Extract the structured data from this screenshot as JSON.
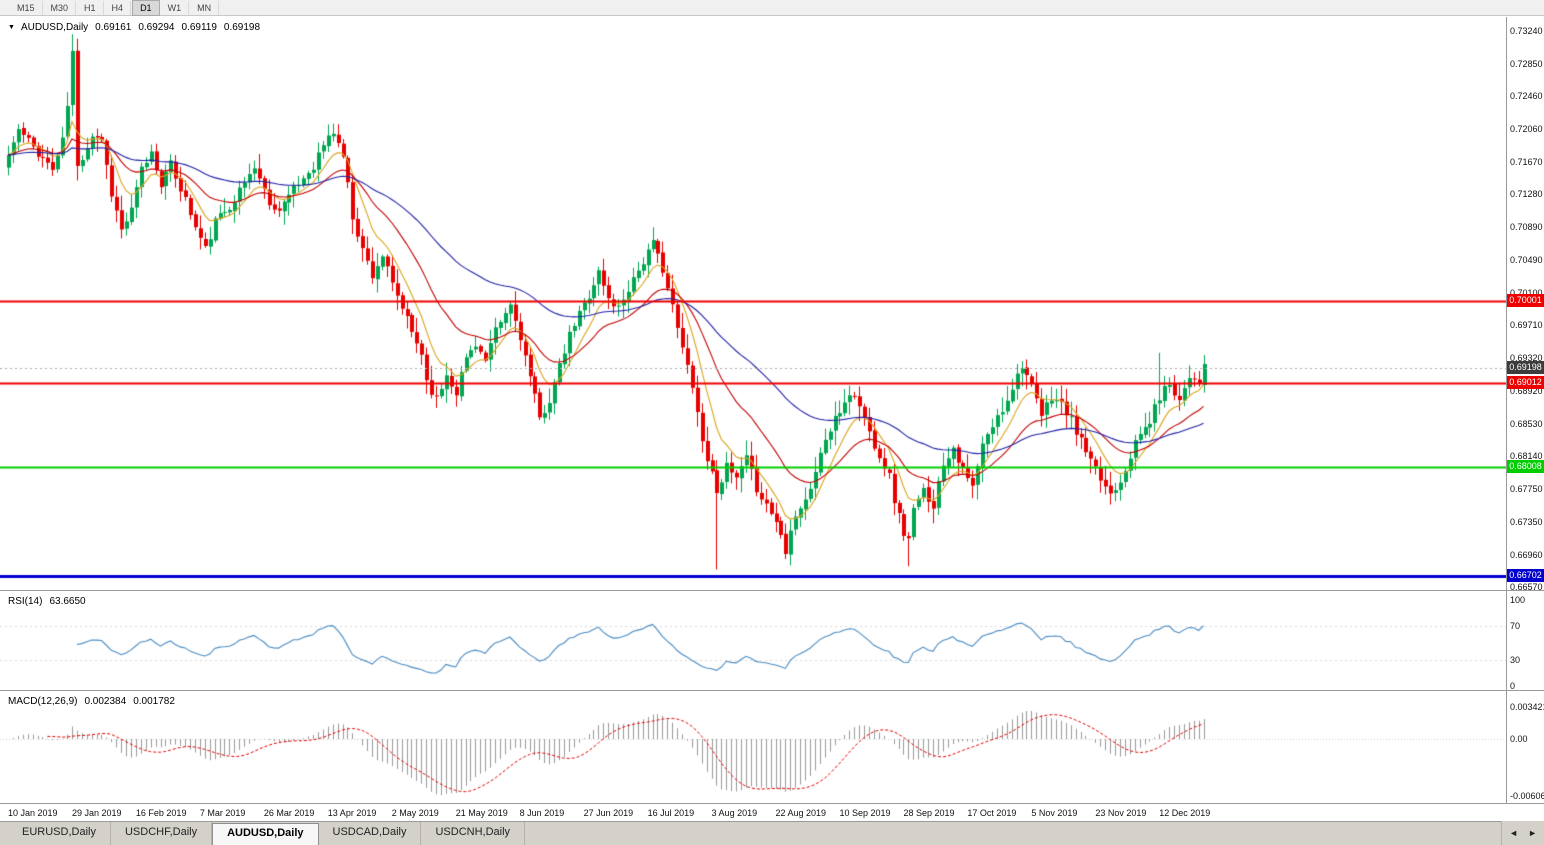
{
  "toolbar": {
    "timeframes": [
      "M15",
      "M30",
      "H1",
      "H4",
      "D1",
      "W1",
      "MN"
    ],
    "active": "D1"
  },
  "chart": {
    "title": "AUDUSD,Daily",
    "ohlc": {
      "open": "0.69161",
      "high": "0.69294",
      "low": "0.69119",
      "close": "0.69198"
    },
    "price_axis": [
      "0.73240",
      "0.72850",
      "0.72460",
      "0.72060",
      "0.71670",
      "0.71280",
      "0.70890",
      "0.70490",
      "0.70100",
      "0.69710",
      "0.69320",
      "0.68920",
      "0.68530",
      "0.68140",
      "0.67750",
      "0.67350",
      "0.66960",
      "0.66570"
    ],
    "hlines": [
      {
        "price": 0.70001,
        "label": "0.70001",
        "color": "#ee0000",
        "width": 2
      },
      {
        "price": 0.69012,
        "label": "0.69012",
        "color": "#ee0000",
        "width": 2
      },
      {
        "price": 0.68008,
        "label": "0.68008",
        "color": "#00ce00",
        "width": 2
      },
      {
        "price": 0.66702,
        "label": "0.66702",
        "color": "#0000cf",
        "width": 3
      }
    ],
    "current_price": {
      "value": 0.69198,
      "label": "0.69198",
      "badge_color": "#3c3c3c"
    },
    "dates": [
      "10 Jan 2019",
      "29 Jan 2019",
      "16 Feb 2019",
      "7 Mar 2019",
      "26 Mar 2019",
      "13 Apr 2019",
      "2 May 2019",
      "21 May 2019",
      "8 Jun 2019",
      "27 Jun 2019",
      "16 Jul 2019",
      "3 Aug 2019",
      "22 Aug 2019",
      "10 Sep 2019",
      "28 Sep 2019",
      "17 Oct 2019",
      "5 Nov 2019",
      "23 Nov 2019",
      "12 Dec 2019"
    ],
    "colors": {
      "bull": "#00a651",
      "bear": "#e60000"
    }
  },
  "rsi": {
    "label": "RSI(14)",
    "value": "63.6650",
    "axis": [
      "100",
      "70",
      "30",
      "0"
    ],
    "line_color": "#4a8bc2",
    "period": 14
  },
  "macd": {
    "label": "MACD(12,26,9)",
    "value1": "0.002384",
    "value2": "0.001782",
    "axis": [
      "0.003421",
      "0.00",
      "-0.006069"
    ],
    "hist_color": "#9a9a9a",
    "signal_color": "#e00000",
    "params": [
      12,
      26,
      9
    ]
  },
  "tabs": {
    "items": [
      "EURUSD,Daily",
      "USDCHF,Daily",
      "AUDUSD,Daily",
      "USDCAD,Daily",
      "USDCNH,Daily"
    ],
    "active": "AUDUSD,Daily",
    "nav_left": "◄",
    "nav_right": "►"
  },
  "chart_data": {
    "type": "candlestick",
    "symbol": "AUDUSD",
    "timeframe": "Daily",
    "candle_count": 244,
    "label_step_days": 13,
    "seed": 11,
    "moving_averages": [
      {
        "period": 8,
        "color": "#d9a520"
      },
      {
        "period": 21,
        "color": "#c00000"
      },
      {
        "period": 55,
        "color": "#2121a8"
      }
    ],
    "price_path": [
      [
        0,
        0.7175
      ],
      [
        2,
        0.7205
      ],
      [
        5,
        0.7185
      ],
      [
        9,
        0.7158
      ],
      [
        11,
        0.7192
      ],
      [
        12,
        0.7235
      ],
      [
        13,
        0.7298
      ],
      [
        14,
        0.716
      ],
      [
        17,
        0.72
      ],
      [
        19,
        0.7195
      ],
      [
        21,
        0.713
      ],
      [
        23,
        0.7085
      ],
      [
        25,
        0.7108
      ],
      [
        27,
        0.7158
      ],
      [
        29,
        0.7178
      ],
      [
        31,
        0.7142
      ],
      [
        33,
        0.7163
      ],
      [
        36,
        0.7122
      ],
      [
        38,
        0.7088
      ],
      [
        40,
        0.7062
      ],
      [
        42,
        0.7095
      ],
      [
        45,
        0.7115
      ],
      [
        47,
        0.7132
      ],
      [
        50,
        0.7162
      ],
      [
        52,
        0.7132
      ],
      [
        54,
        0.7108
      ],
      [
        57,
        0.7126
      ],
      [
        59,
        0.714
      ],
      [
        62,
        0.7163
      ],
      [
        64,
        0.7188
      ],
      [
        66,
        0.7203
      ],
      [
        68,
        0.7175
      ],
      [
        70,
        0.7102
      ],
      [
        72,
        0.7062
      ],
      [
        74,
        0.7032
      ],
      [
        76,
        0.7055
      ],
      [
        78,
        0.7018
      ],
      [
        80,
        0.6992
      ],
      [
        82,
        0.6962
      ],
      [
        84,
        0.6938
      ],
      [
        85,
        0.6905
      ],
      [
        87,
        0.6882
      ],
      [
        89,
        0.6912
      ],
      [
        91,
        0.6892
      ],
      [
        93,
        0.6932
      ],
      [
        95,
        0.695
      ],
      [
        97,
        0.6927
      ],
      [
        99,
        0.6963
      ],
      [
        102,
        0.6995
      ],
      [
        104,
        0.6958
      ],
      [
        106,
        0.6908
      ],
      [
        108,
        0.6858
      ],
      [
        110,
        0.6882
      ],
      [
        112,
        0.692
      ],
      [
        114,
        0.6958
      ],
      [
        116,
        0.6985
      ],
      [
        118,
        0.7008
      ],
      [
        120,
        0.7035
      ],
      [
        122,
        0.7002
      ],
      [
        124,
        0.6992
      ],
      [
        127,
        0.7028
      ],
      [
        129,
        0.7048
      ],
      [
        131,
        0.7068
      ],
      [
        133,
        0.704
      ],
      [
        135,
        0.6992
      ],
      [
        137,
        0.6942
      ],
      [
        139,
        0.6902
      ],
      [
        141,
        0.6832
      ],
      [
        143,
        0.6792
      ],
      [
        144,
        0.6775
      ],
      [
        146,
        0.68
      ],
      [
        148,
        0.6786
      ],
      [
        150,
        0.681
      ],
      [
        152,
        0.6776
      ],
      [
        154,
        0.6756
      ],
      [
        156,
        0.6736
      ],
      [
        158,
        0.6702
      ],
      [
        159,
        0.673
      ],
      [
        161,
        0.6754
      ],
      [
        163,
        0.6772
      ],
      [
        165,
        0.682
      ],
      [
        167,
        0.6845
      ],
      [
        169,
        0.6868
      ],
      [
        171,
        0.689
      ],
      [
        173,
        0.6876
      ],
      [
        175,
        0.6842
      ],
      [
        177,
        0.6816
      ],
      [
        179,
        0.679
      ],
      [
        180,
        0.6762
      ],
      [
        182,
        0.6722
      ],
      [
        183,
        0.6714
      ],
      [
        184,
        0.6748
      ],
      [
        186,
        0.6772
      ],
      [
        188,
        0.6756
      ],
      [
        190,
        0.6806
      ],
      [
        192,
        0.6826
      ],
      [
        194,
        0.6796
      ],
      [
        196,
        0.6776
      ],
      [
        198,
        0.6826
      ],
      [
        200,
        0.685
      ],
      [
        202,
        0.687
      ],
      [
        204,
        0.6898
      ],
      [
        206,
        0.6925
      ],
      [
        208,
        0.6896
      ],
      [
        210,
        0.6862
      ],
      [
        212,
        0.6886
      ],
      [
        214,
        0.6876
      ],
      [
        216,
        0.6856
      ],
      [
        218,
        0.6832
      ],
      [
        220,
        0.6806
      ],
      [
        222,
        0.6786
      ],
      [
        224,
        0.677
      ],
      [
        226,
        0.6786
      ],
      [
        228,
        0.6816
      ],
      [
        230,
        0.684
      ],
      [
        232,
        0.6856
      ],
      [
        234,
        0.6886
      ],
      [
        236,
        0.6902
      ],
      [
        238,
        0.6882
      ],
      [
        240,
        0.6912
      ],
      [
        242,
        0.6905
      ],
      [
        243,
        0.69198
      ]
    ],
    "wicks": [
      {
        "day": 13,
        "high": 0.732
      },
      {
        "day": 14,
        "high": 0.7295
      },
      {
        "day": 144,
        "low": 0.6678
      },
      {
        "day": 183,
        "low": 0.6682
      },
      {
        "day": 234,
        "high": 0.6938
      }
    ]
  }
}
